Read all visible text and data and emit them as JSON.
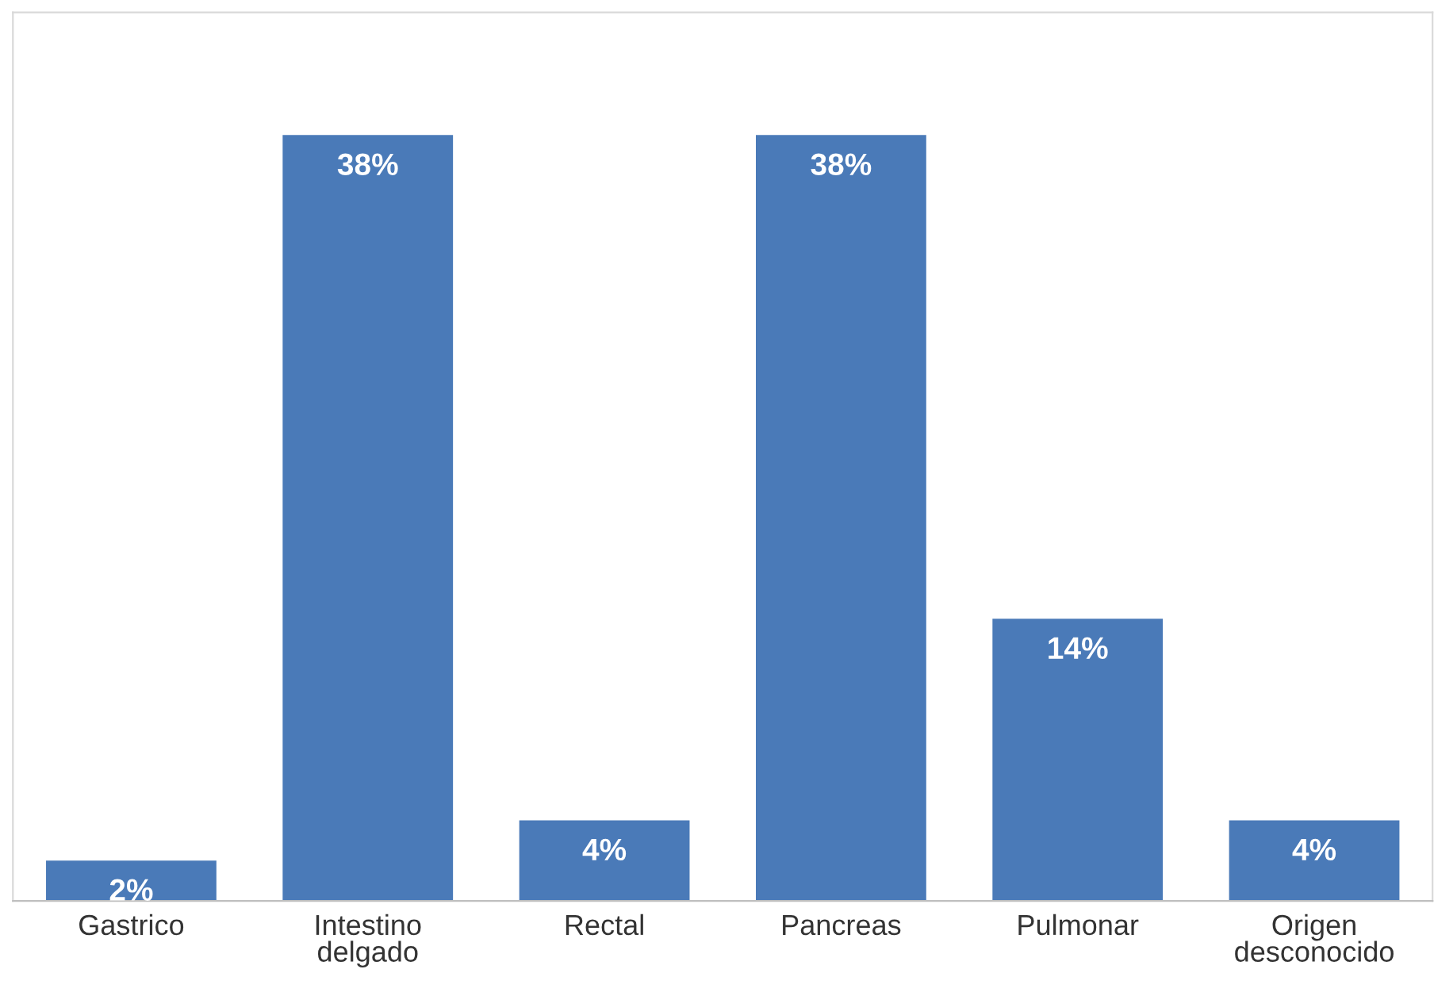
{
  "chart_data": {
    "type": "bar",
    "categories": [
      "Gastrico",
      "Intestino delgado",
      "Rectal",
      "Pancreas",
      "Pulmonar",
      "Origen desconocido"
    ],
    "values": [
      2,
      38,
      4,
      38,
      14,
      4
    ],
    "value_labels": [
      "2%",
      "38%",
      "4%",
      "38%",
      "14%",
      "4%"
    ],
    "color": "#4a7ab8",
    "grid": false,
    "legend": false
  }
}
